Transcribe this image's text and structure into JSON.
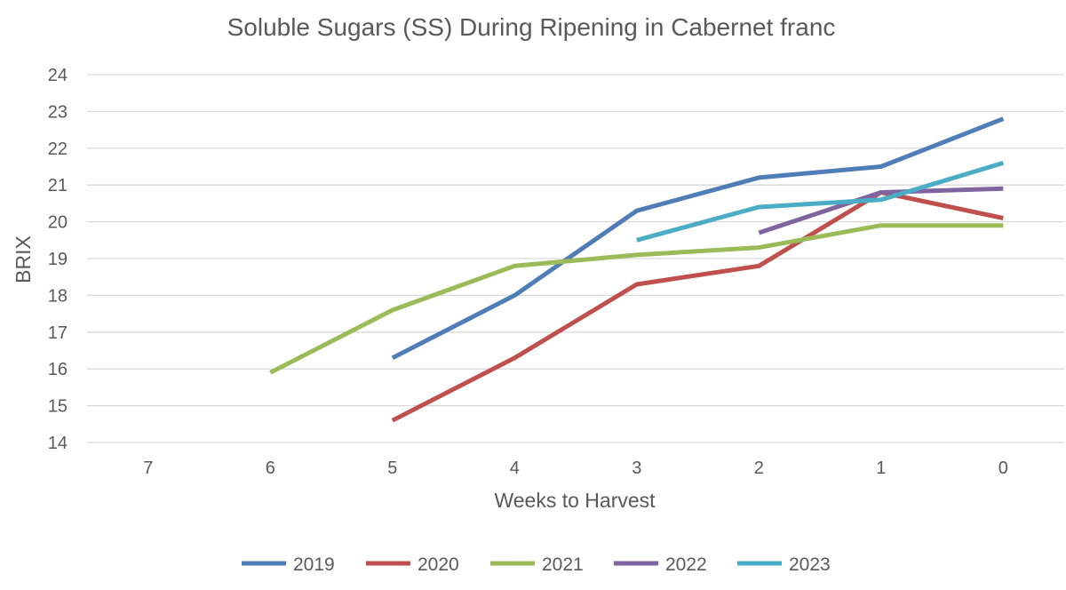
{
  "chart_data": {
    "type": "line",
    "title": "Soluble Sugars (SS) During Ripening in Cabernet franc",
    "xlabel": "Weeks to Harvest",
    "ylabel": "BRIX",
    "categories": [
      "7",
      "6",
      "5",
      "4",
      "3",
      "2",
      "1",
      "0"
    ],
    "ylim": [
      14,
      24
    ],
    "yticks": [
      14,
      15,
      16,
      17,
      18,
      19,
      20,
      21,
      22,
      23,
      24
    ],
    "grid": true,
    "legend_position": "bottom",
    "series": [
      {
        "name": "2019",
        "color": "#4e7db8",
        "values": [
          null,
          null,
          16.3,
          18.0,
          20.3,
          21.2,
          21.5,
          22.8
        ]
      },
      {
        "name": "2020",
        "color": "#c0504d",
        "values": [
          null,
          null,
          14.6,
          16.3,
          18.3,
          18.8,
          20.8,
          20.1
        ]
      },
      {
        "name": "2021",
        "color": "#9bbb59",
        "values": [
          null,
          15.9,
          17.6,
          18.8,
          19.1,
          19.3,
          19.9,
          19.9
        ]
      },
      {
        "name": "2022",
        "color": "#8064a2",
        "values": [
          null,
          null,
          null,
          null,
          null,
          19.7,
          20.8,
          20.9
        ]
      },
      {
        "name": "2023",
        "color": "#4bacc6",
        "values": [
          null,
          null,
          null,
          null,
          19.5,
          20.4,
          20.6,
          21.6
        ]
      }
    ]
  }
}
